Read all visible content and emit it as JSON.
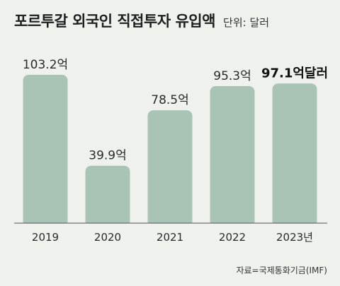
{
  "title": "포르투갈 외국인 직접투자 유입액",
  "unit_label": "단위: 달러",
  "source": "자료=국제통화기금(IMF)",
  "colors": {
    "bar": "#a9c3b5",
    "axis": "#555555",
    "background": "#eef1ec"
  },
  "chart_data": {
    "type": "bar",
    "title": "포르투갈 외국인 직접투자 유입액",
    "unit": "단위: 달러",
    "categories": [
      "2019",
      "2020",
      "2021",
      "2022",
      "2023년"
    ],
    "values": [
      103.2,
      39.9,
      78.5,
      95.3,
      97.1
    ],
    "value_labels": [
      "103.2억",
      "39.9억",
      "78.5억",
      "95.3억",
      "97.1억달러"
    ],
    "ylim": [
      0,
      110
    ],
    "grid": false,
    "legend": "none"
  }
}
